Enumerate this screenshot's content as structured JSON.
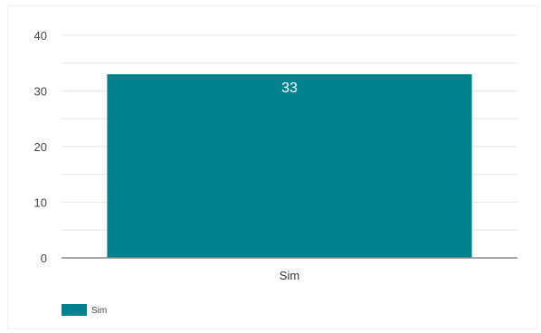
{
  "chart_data": {
    "type": "bar",
    "categories": [
      "Sim"
    ],
    "series": [
      {
        "name": "Sim",
        "values": [
          33
        ],
        "color": "#00838f"
      }
    ],
    "ylim": [
      0,
      40
    ],
    "yticks": [
      0,
      10,
      20,
      30,
      40
    ],
    "grid": true,
    "minor_grid": true,
    "data_labels": true,
    "legend": {
      "position": "bottom-left",
      "entries": [
        "Sim"
      ]
    },
    "colors": {
      "bar": "#00838f",
      "grid": "#e6e6e6",
      "axis": "#888888"
    }
  }
}
